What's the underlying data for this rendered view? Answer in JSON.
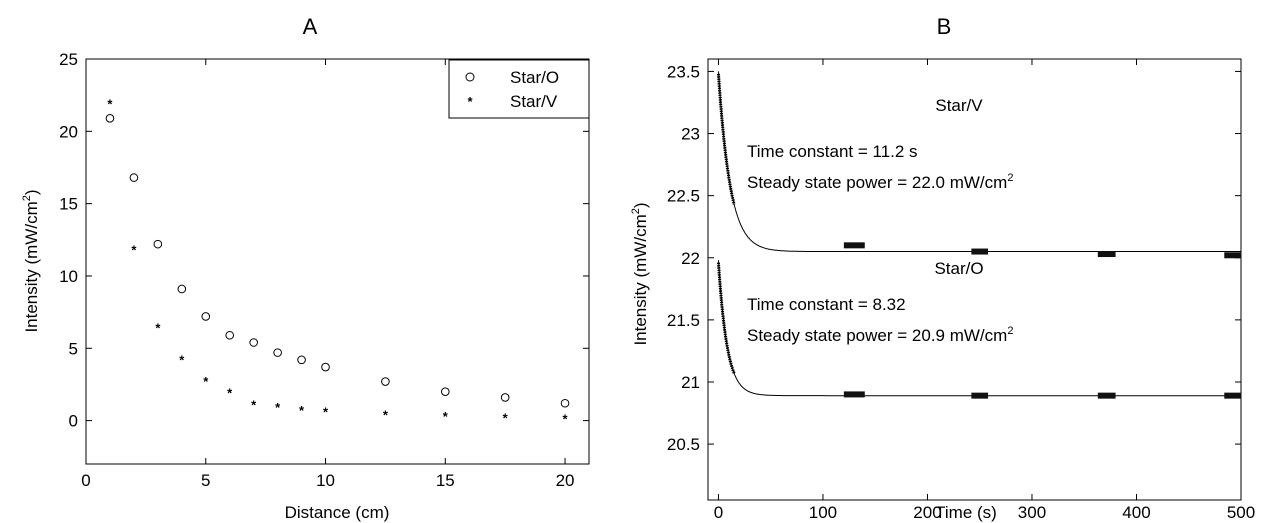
{
  "chart_data": [
    {
      "type": "scatter",
      "title": "A",
      "xlabel": "Distance (cm)",
      "ylabel": "Intensity (mW/cm",
      "ylabel_sup": "2",
      "ylabel_close": ")",
      "xlim": [
        0,
        21
      ],
      "ylim": [
        -3,
        25
      ],
      "xticks": [
        0,
        5,
        10,
        15,
        20
      ],
      "yticks": [
        0,
        5,
        10,
        15,
        20,
        25
      ],
      "legend": "top-right",
      "grid": false,
      "series": [
        {
          "name": "Star/O",
          "marker": "circle",
          "x": [
            1,
            2,
            3,
            4,
            5,
            6,
            7,
            8,
            9,
            10,
            12.5,
            15,
            17.5,
            20
          ],
          "y": [
            20.9,
            16.8,
            12.2,
            9.1,
            7.2,
            5.9,
            5.4,
            4.7,
            4.2,
            3.7,
            2.7,
            2.0,
            1.6,
            1.2
          ]
        },
        {
          "name": "Star/V",
          "marker": "asterisk",
          "x": [
            1,
            2,
            3,
            4,
            5,
            6,
            7,
            8,
            9,
            10,
            12.5,
            15,
            17.5,
            20
          ],
          "y": [
            22.0,
            11.9,
            6.5,
            4.3,
            2.8,
            2.0,
            1.2,
            1.0,
            0.8,
            0.7,
            0.5,
            0.4,
            0.3,
            0.2
          ]
        }
      ]
    },
    {
      "type": "line",
      "title": "B",
      "xlabel": "Time (s)",
      "ylabel": "Intensity (mW/cm",
      "ylabel_sup": "2",
      "ylabel_close": ")",
      "xlim": [
        -10,
        500
      ],
      "ylim": [
        20.05,
        23.6
      ],
      "xticks": [
        0,
        100,
        200,
        300,
        400,
        500
      ],
      "yticks": [
        20.5,
        21,
        21.5,
        22,
        22.5,
        23,
        23.5
      ],
      "grid": false,
      "series": [
        {
          "label": "Star/V",
          "fit": {
            "offset": 22.05,
            "amplitude": 1.45,
            "time_constant": 11.2,
            "t_end": 500
          },
          "measured_segments": [
            {
              "t": [
                0,
                15
              ],
              "kind": "decay"
            },
            {
              "t": [
                120,
                140
              ],
              "y": 22.1
            },
            {
              "t": [
                242,
                258
              ],
              "y": 22.05
            },
            {
              "t": [
                363,
                380
              ],
              "y": 22.03
            },
            {
              "t": [
                484,
                500
              ],
              "y": 22.02
            }
          ]
        },
        {
          "label": "Star/O",
          "fit": {
            "offset": 20.89,
            "amplitude": 1.09,
            "time_constant": 8.32,
            "t_end": 500
          },
          "measured_segments": [
            {
              "t": [
                0,
                15
              ],
              "kind": "decay"
            },
            {
              "t": [
                120,
                140
              ],
              "y": 20.9
            },
            {
              "t": [
                242,
                258
              ],
              "y": 20.89
            },
            {
              "t": [
                363,
                380
              ],
              "y": 20.89
            },
            {
              "t": [
                484,
                500
              ],
              "y": 20.89
            }
          ]
        }
      ],
      "annotations": {
        "v_title": "Star/V",
        "v_tc": "Time constant = 11.2 s",
        "v_ss": "Steady state power = 22.0 mW/cm",
        "v_ss_sup": "2",
        "o_title": "Star/O",
        "o_tc": "Time constant = 8.32",
        "o_ss": "Steady state power = 20.9 mW/cm",
        "o_ss_sup": "2"
      }
    }
  ]
}
